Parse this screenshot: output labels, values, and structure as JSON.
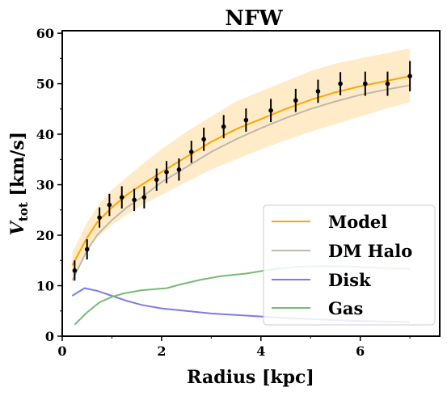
{
  "chart_data": {
    "type": "line",
    "title": "NFW",
    "xlabel": "Radius [kpc]",
    "ylabel_main": "V",
    "ylabel_sub": "tot",
    "ylabel_unit": " [km/s]",
    "xlim": [
      0,
      7.6
    ],
    "ylim": [
      0,
      60.5
    ],
    "xticks": [
      0,
      2,
      4,
      6
    ],
    "yticks": [
      0,
      10,
      20,
      30,
      40,
      50,
      60
    ],
    "grid": false,
    "legend_position": "bottom-right",
    "series": [
      {
        "name": "Model",
        "color": "#FFA500",
        "x": [
          0.2,
          0.5,
          0.7,
          1.0,
          1.3,
          1.6,
          2.0,
          2.5,
          3.0,
          3.5,
          4.0,
          4.5,
          5.0,
          5.5,
          6.0,
          6.5,
          7.0
        ],
        "y": [
          14.0,
          19.5,
          22.5,
          25.5,
          28.0,
          30.0,
          32.5,
          35.5,
          38.5,
          41.0,
          43.0,
          45.0,
          46.8,
          48.3,
          49.5,
          50.5,
          51.5
        ],
        "band_lower": [
          11.5,
          17.0,
          19.5,
          22.0,
          24.0,
          26.0,
          28.0,
          30.5,
          33.0,
          35.0,
          37.0,
          38.8,
          40.5,
          42.0,
          43.5,
          45.0,
          46.3
        ],
        "band_upper": [
          16.5,
          22.5,
          25.5,
          29.0,
          31.5,
          34.0,
          37.0,
          40.5,
          43.5,
          46.5,
          48.5,
          50.5,
          52.5,
          54.0,
          55.0,
          56.0,
          57.0
        ]
      },
      {
        "name": "DM Halo",
        "color": "#C0B8AE",
        "x": [
          0.2,
          0.5,
          0.7,
          1.0,
          1.3,
          1.6,
          2.0,
          2.5,
          3.0,
          3.5,
          4.0,
          4.5,
          5.0,
          5.5,
          6.0,
          6.5,
          7.0
        ],
        "y": [
          11.0,
          17.0,
          20.0,
          23.0,
          25.5,
          27.5,
          30.5,
          33.5,
          36.5,
          39.0,
          41.2,
          43.2,
          45.0,
          46.5,
          47.8,
          48.8,
          49.7
        ]
      },
      {
        "name": "Disk",
        "color": "#7B7BEE",
        "x": [
          0.2,
          0.45,
          0.7,
          1.0,
          1.3,
          1.6,
          2.0,
          2.5,
          3.0,
          3.5,
          4.0,
          4.5,
          5.0,
          5.5,
          6.0,
          6.5,
          7.0
        ],
        "y": [
          8.0,
          9.5,
          9.0,
          8.0,
          7.0,
          6.2,
          5.5,
          5.0,
          4.5,
          4.2,
          3.9,
          3.6,
          3.4,
          3.2,
          3.0,
          2.9,
          2.8
        ]
      },
      {
        "name": "Gas",
        "color": "#77BB77",
        "x": [
          0.25,
          0.5,
          0.75,
          1.0,
          1.25,
          1.6,
          2.1,
          2.4,
          2.8,
          3.2,
          3.7,
          4.2,
          4.8,
          5.3,
          5.8,
          6.2,
          6.6,
          7.0
        ],
        "y": [
          2.3,
          4.7,
          6.7,
          7.8,
          8.5,
          9.1,
          9.5,
          10.3,
          11.2,
          11.9,
          12.4,
          13.2,
          13.8,
          13.9,
          13.8,
          13.6,
          13.4,
          13.3
        ]
      }
    ],
    "observed": {
      "x": [
        0.25,
        0.5,
        0.75,
        0.95,
        1.2,
        1.45,
        1.65,
        1.9,
        2.1,
        2.35,
        2.6,
        2.85,
        3.25,
        3.7,
        4.2,
        4.7,
        5.15,
        5.6,
        6.1,
        6.55,
        7.0
      ],
      "y": [
        13.0,
        17.2,
        23.5,
        26.0,
        27.5,
        27.0,
        27.5,
        31.0,
        32.5,
        33.0,
        36.5,
        39.0,
        41.5,
        42.8,
        44.7,
        46.7,
        48.5,
        50.0,
        50.0,
        50.0,
        51.5
      ],
      "err": [
        2.0,
        2.0,
        2.0,
        2.2,
        2.2,
        2.2,
        2.2,
        2.2,
        2.2,
        2.2,
        2.2,
        2.3,
        2.3,
        2.3,
        2.3,
        2.3,
        2.3,
        2.3,
        2.4,
        2.4,
        3.0
      ],
      "color": "#000000"
    }
  }
}
